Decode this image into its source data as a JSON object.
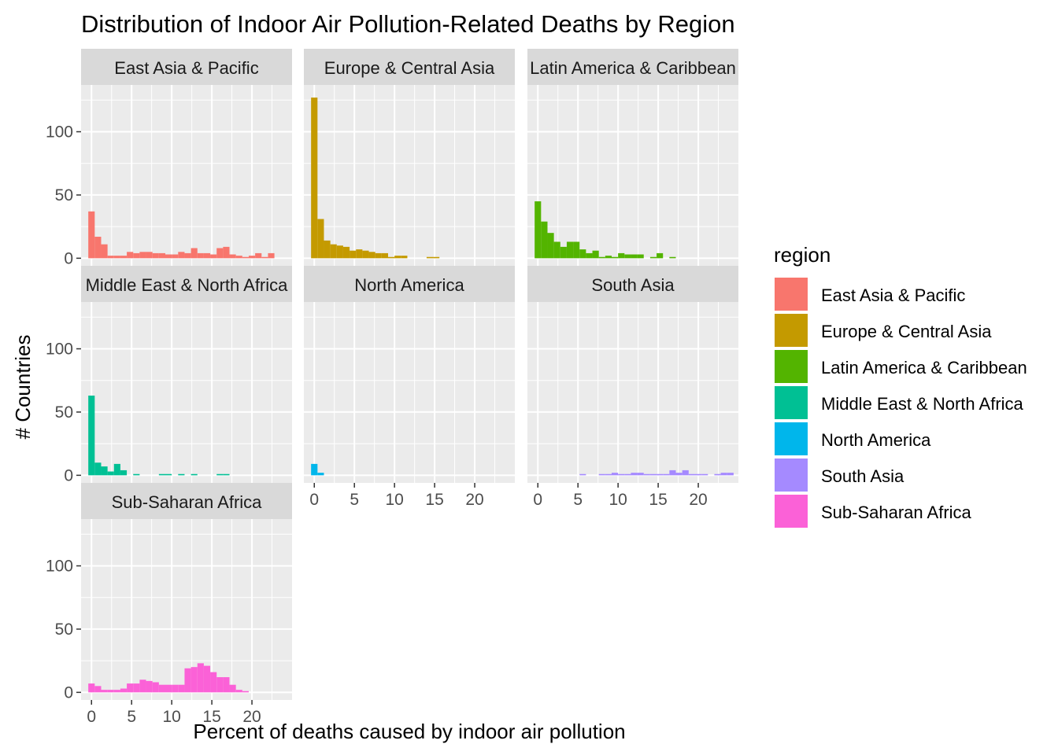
{
  "chart_data": {
    "type": "histogram",
    "title": "Distribution of Indoor Air Pollution-Related Deaths by Region",
    "xlabel": "Percent of deaths caused by indoor air pollution",
    "ylabel": "# Countries",
    "xlim": [
      -1.3,
      25
    ],
    "ylim": [
      -6,
      137
    ],
    "x_ticks": [
      0,
      5,
      10,
      15,
      20
    ],
    "y_ticks": [
      0,
      50,
      100
    ],
    "bin_width": 0.8,
    "legend_title": "region",
    "legend_position": "right",
    "grid": true,
    "facets": [
      {
        "name": "East Asia & Pacific",
        "color": "#F8766D",
        "values": [
          37,
          17,
          11,
          2,
          2,
          2,
          5,
          4,
          5,
          5,
          4,
          4,
          3,
          3,
          5,
          4,
          8,
          4,
          4,
          3,
          8,
          9,
          3,
          2,
          1,
          2,
          4,
          1,
          4
        ]
      },
      {
        "name": "Europe & Central Asia",
        "color": "#C49A00",
        "values": [
          127,
          31,
          14,
          11,
          10,
          9,
          6,
          7,
          6,
          5,
          4,
          4,
          1,
          2,
          2,
          0,
          0,
          0,
          1,
          1,
          0,
          0,
          0,
          0,
          0,
          0,
          0,
          0,
          0
        ]
      },
      {
        "name": "Latin America & Caribbean",
        "color": "#53B400",
        "values": [
          45,
          29,
          20,
          13,
          9,
          13,
          13,
          7,
          4,
          6,
          1,
          2,
          1,
          4,
          3,
          3,
          3,
          0,
          1,
          4,
          0,
          1,
          0,
          0,
          0,
          0,
          0,
          0,
          0
        ]
      },
      {
        "name": "Middle East & North Africa",
        "color": "#00C094",
        "values": [
          63,
          10,
          7,
          3,
          9,
          4,
          0,
          1,
          0,
          0,
          0,
          1,
          1,
          0,
          1,
          0,
          1,
          0,
          0,
          0,
          1,
          1,
          0,
          0,
          0,
          0,
          0,
          0,
          0
        ]
      },
      {
        "name": "North America",
        "color": "#00B6EB",
        "values": [
          9,
          2,
          0,
          0,
          0,
          0,
          0,
          0,
          0,
          0,
          0,
          0,
          0,
          0,
          0,
          0,
          0,
          0,
          0,
          0,
          0,
          0,
          0,
          0,
          0,
          0,
          0,
          0,
          0
        ]
      },
      {
        "name": "South Asia",
        "color": "#A58AFF",
        "values": [
          0,
          0,
          0,
          0,
          0,
          0,
          0,
          1,
          0,
          0,
          1,
          1,
          2,
          1,
          1,
          2,
          2,
          1,
          1,
          1,
          1,
          4,
          2,
          4,
          1,
          1,
          1,
          0,
          1,
          2,
          2
        ]
      },
      {
        "name": "Sub-Saharan Africa",
        "color": "#FB61D7",
        "values": [
          7,
          5,
          2,
          2,
          2,
          3,
          7,
          7,
          10,
          9,
          8,
          6,
          6,
          6,
          6,
          19,
          20,
          23,
          21,
          16,
          12,
          12,
          6,
          2,
          1
        ]
      }
    ]
  }
}
